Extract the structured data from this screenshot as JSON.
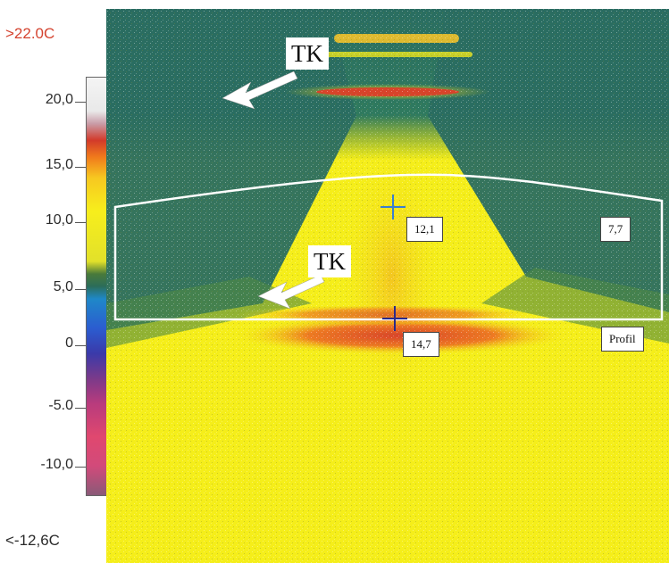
{
  "scale": {
    "max_label": ">22.0C",
    "min_label": "<-12,6C",
    "ticks": [
      "20,0",
      "15,0",
      "10,0",
      "5,0",
      "0",
      "-5.0",
      "-10,0"
    ]
  },
  "annotations": {
    "tk_upper": "TK",
    "tk_lower": "TK",
    "point_upper_value": "12,1",
    "point_right_value": "7,7",
    "point_lower_value": "14,7",
    "profile_label": "Profil"
  },
  "colors": {
    "max_label": "#d4432f",
    "yellow": "#f5ee1a",
    "teal": "#2a6d61",
    "red": "#d8432a",
    "outline": "#ffffff"
  }
}
